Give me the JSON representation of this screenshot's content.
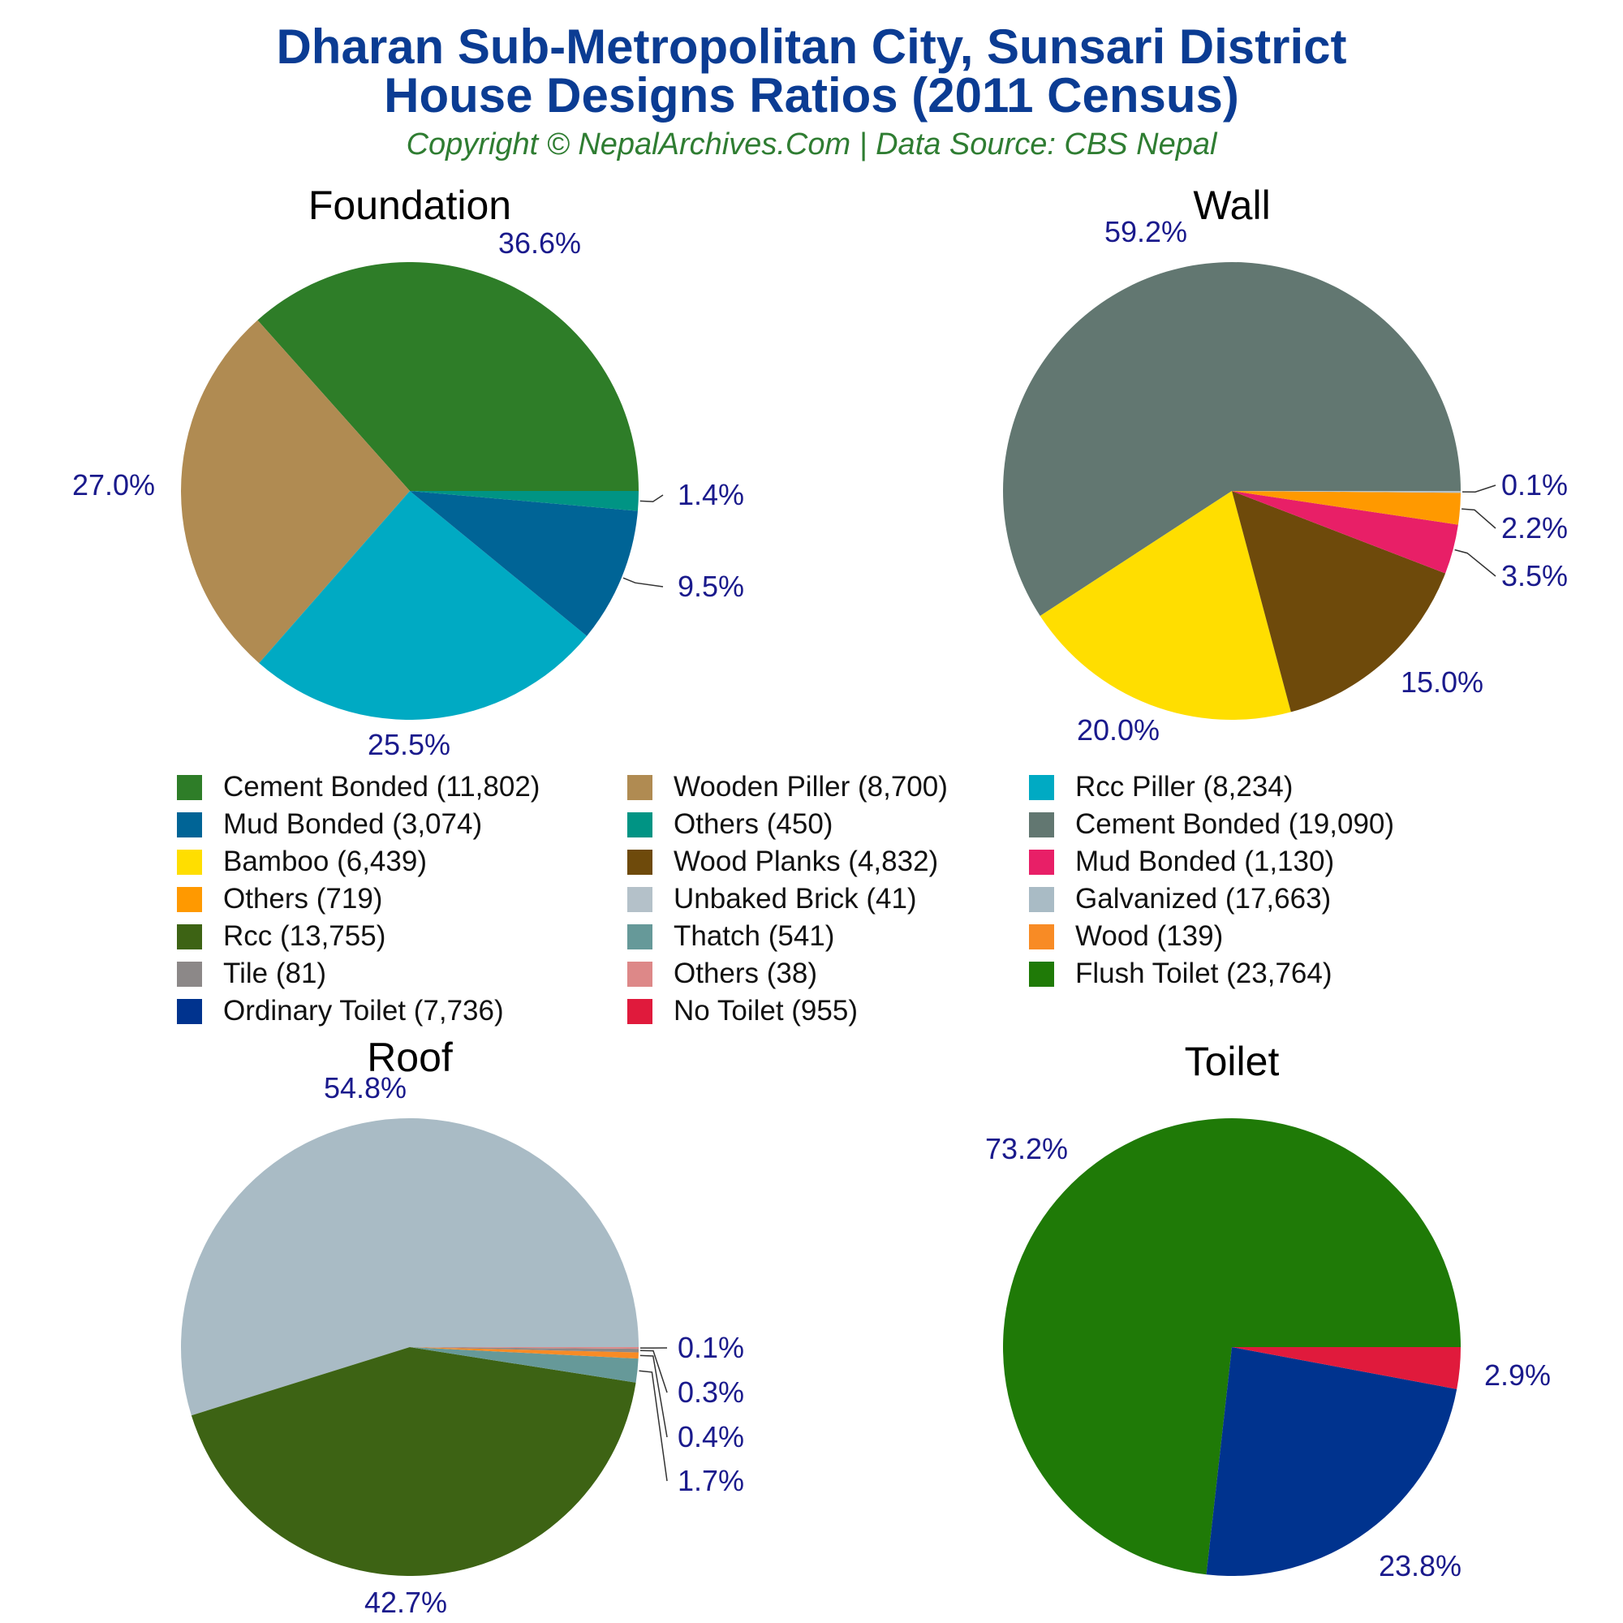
{
  "title": {
    "line1": "Dharan Sub-Metropolitan City, Sunsari District",
    "line2": "House Designs Ratios (2011 Census)"
  },
  "subtitle": "Copyright © NepalArchives.Com | Data Source: CBS Nepal",
  "chart_data": [
    {
      "type": "pie",
      "title": "Foundation",
      "slices": [
        {
          "label": "Cement Bonded",
          "value": 11802,
          "percent_label": "36.6%",
          "color": "#2e7d28"
        },
        {
          "label": "Wooden Piller",
          "value": 8700,
          "percent_label": "27.0%",
          "color": "#b08b52"
        },
        {
          "label": "Rcc Piller",
          "value": 8234,
          "percent_label": "25.5%",
          "color": "#00aac3"
        },
        {
          "label": "Mud Bonded",
          "value": 3074,
          "percent_label": "9.5%",
          "color": "#006496"
        },
        {
          "label": "Others",
          "value": 450,
          "percent_label": "1.4%",
          "color": "#009484"
        }
      ]
    },
    {
      "type": "pie",
      "title": "Wall",
      "slices": [
        {
          "label": "Cement Bonded",
          "value": 19090,
          "percent_label": "59.2%",
          "color": "#627771"
        },
        {
          "label": "Bamboo",
          "value": 6439,
          "percent_label": "20.0%",
          "color": "#ffde00"
        },
        {
          "label": "Wood Planks",
          "value": 4832,
          "percent_label": "15.0%",
          "color": "#6e4a0b"
        },
        {
          "label": "Mud Bonded",
          "value": 1130,
          "percent_label": "3.5%",
          "color": "#e81f67"
        },
        {
          "label": "Others",
          "value": 719,
          "percent_label": "2.2%",
          "color": "#ff9900"
        },
        {
          "label": "Unbaked Brick",
          "value": 41,
          "percent_label": "0.1%",
          "color": "#b4c1c9"
        }
      ]
    },
    {
      "type": "pie",
      "title": "Roof",
      "slices": [
        {
          "label": "Galvanized",
          "value": 17663,
          "percent_label": "54.8%",
          "color": "#a9bbc5"
        },
        {
          "label": "Rcc",
          "value": 13755,
          "percent_label": "42.7%",
          "color": "#3d6314"
        },
        {
          "label": "Thatch",
          "value": 541,
          "percent_label": "1.7%",
          "color": "#669999"
        },
        {
          "label": "Wood",
          "value": 139,
          "percent_label": "0.4%",
          "color": "#f88b25"
        },
        {
          "label": "Tile",
          "value": 81,
          "percent_label": "0.3%",
          "color": "#8c8888"
        },
        {
          "label": "Others",
          "value": 38,
          "percent_label": "0.1%",
          "color": "#dd8888"
        }
      ]
    },
    {
      "type": "pie",
      "title": "Toilet",
      "slices": [
        {
          "label": "Flush Toilet",
          "value": 23764,
          "percent_label": "73.2%",
          "color": "#1f7a07"
        },
        {
          "label": "Ordinary Toilet",
          "value": 7736,
          "percent_label": "23.8%",
          "color": "#00338e"
        },
        {
          "label": "No Toilet",
          "value": 955,
          "percent_label": "2.9%",
          "color": "#e01a3c"
        }
      ]
    }
  ],
  "legend": [
    {
      "label": "Cement Bonded (11,802)",
      "color": "#2e7d28"
    },
    {
      "label": "Wooden Piller (8,700)",
      "color": "#b08b52"
    },
    {
      "label": "Rcc Piller (8,234)",
      "color": "#00aac3"
    },
    {
      "label": "Mud Bonded (3,074)",
      "color": "#006496"
    },
    {
      "label": "Others (450)",
      "color": "#009484"
    },
    {
      "label": "Cement Bonded (19,090)",
      "color": "#627771"
    },
    {
      "label": "Bamboo (6,439)",
      "color": "#ffde00"
    },
    {
      "label": "Wood Planks (4,832)",
      "color": "#6e4a0b"
    },
    {
      "label": "Mud Bonded (1,130)",
      "color": "#e81f67"
    },
    {
      "label": "Others (719)",
      "color": "#ff9900"
    },
    {
      "label": "Unbaked Brick (41)",
      "color": "#b4c1c9"
    },
    {
      "label": "Galvanized (17,663)",
      "color": "#a9bbc5"
    },
    {
      "label": "Rcc (13,755)",
      "color": "#3d6314"
    },
    {
      "label": "Thatch (541)",
      "color": "#669999"
    },
    {
      "label": "Wood (139)",
      "color": "#f88b25"
    },
    {
      "label": "Tile (81)",
      "color": "#8c8888"
    },
    {
      "label": "Others (38)",
      "color": "#dd8888"
    },
    {
      "label": "Flush Toilet (23,764)",
      "color": "#1f7a07"
    },
    {
      "label": "Ordinary Toilet (7,736)",
      "color": "#00338e"
    },
    {
      "label": "No Toilet (955)",
      "color": "#e01a3c"
    }
  ],
  "colors": {
    "title": "#0b3c93",
    "subtitle": "#2f7d32",
    "percent_label": "#1a1a8c",
    "panel_title": "#000000"
  }
}
